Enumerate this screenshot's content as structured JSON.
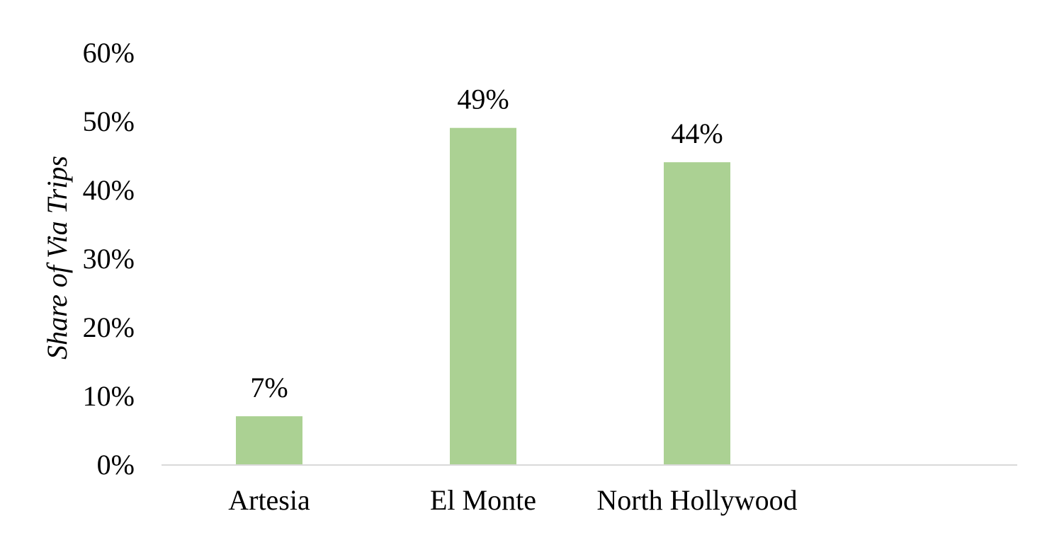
{
  "chart_data": {
    "type": "bar",
    "categories": [
      "Artesia",
      "El Monte",
      "North Hollywood"
    ],
    "series": [
      {
        "values": [
          0.07,
          0.49,
          0.44
        ],
        "data_labels": [
          "7%",
          "49%",
          "44%"
        ],
        "color": "#abd193"
      }
    ],
    "title": "",
    "xlabel": "",
    "ylabel": "Share of Via Trips",
    "ylim": [
      0,
      0.6
    ],
    "yticks": [
      0,
      0.1,
      0.2,
      0.3,
      0.4,
      0.5,
      0.6
    ],
    "ytick_labels": [
      "0%",
      "10%",
      "20%",
      "30%",
      "40%",
      "50%",
      "60%"
    ],
    "grid": false,
    "legend": "none",
    "axis_color": "#d9d9d9"
  }
}
